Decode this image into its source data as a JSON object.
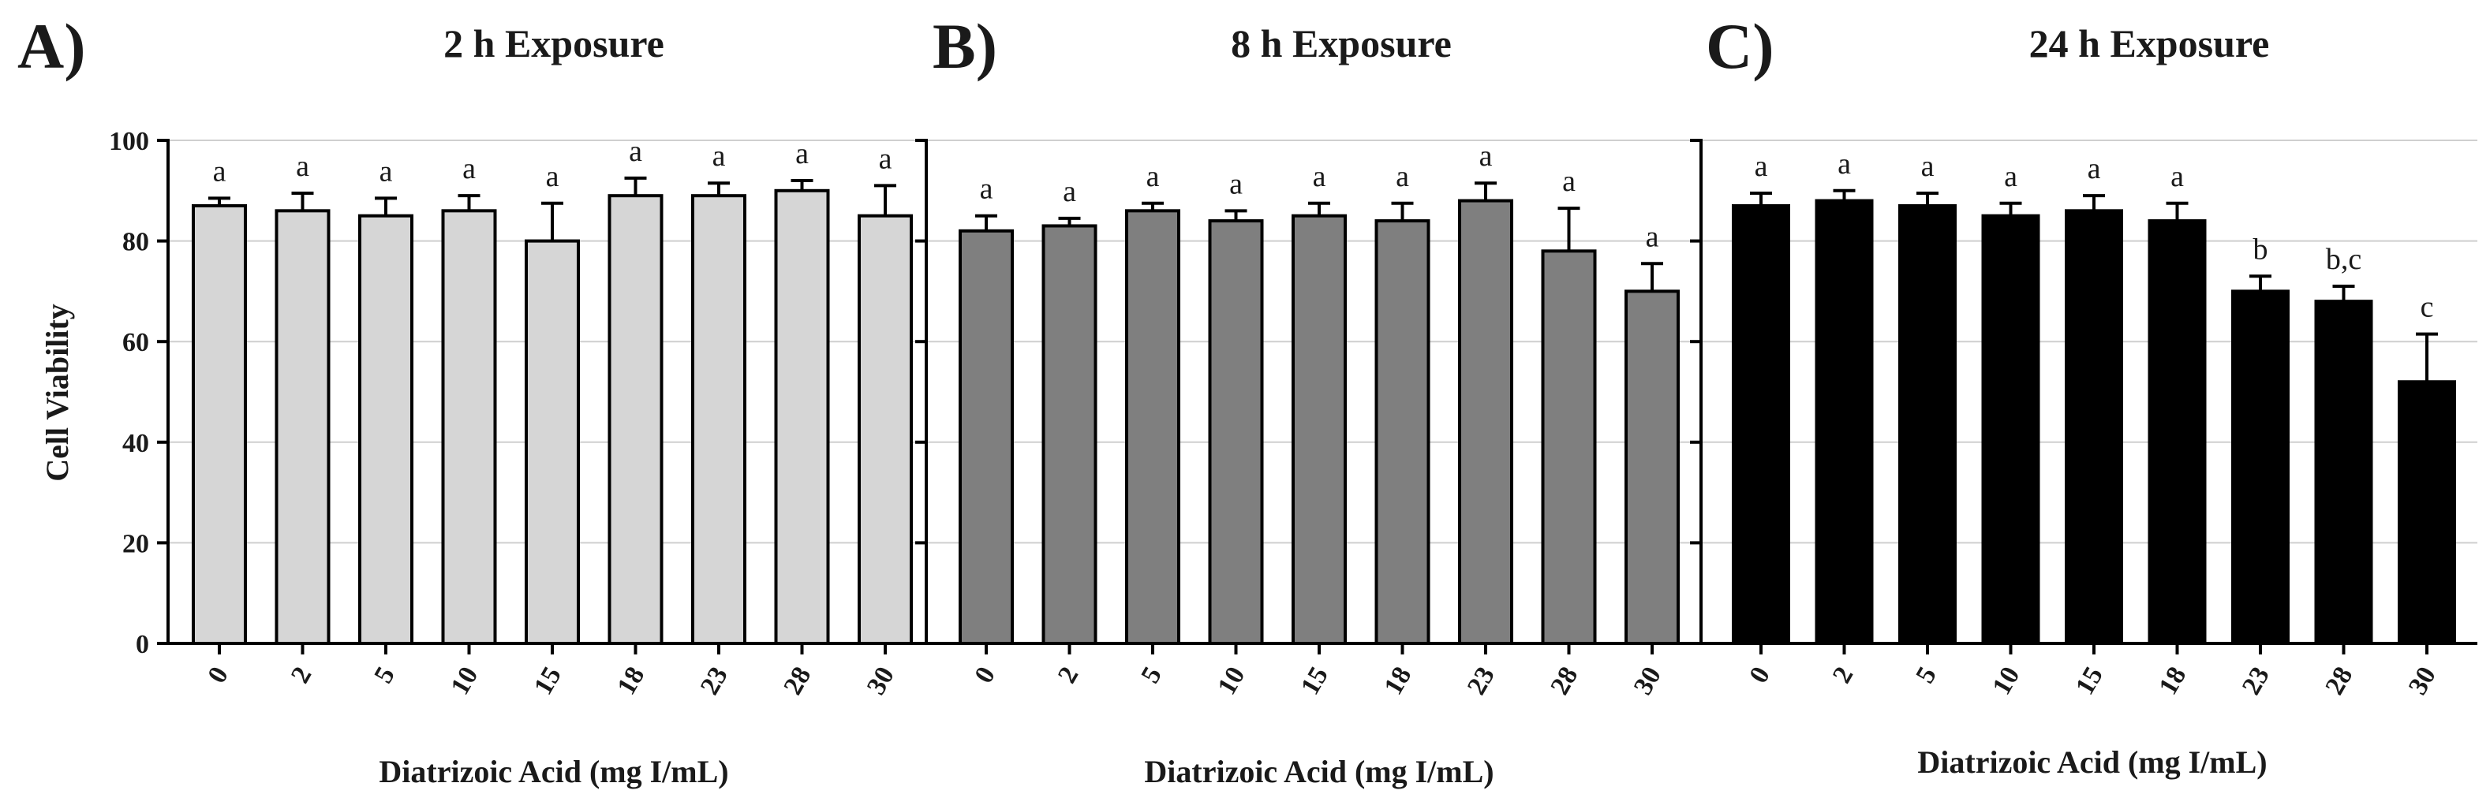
{
  "chart_data": [
    {
      "type": "bar",
      "panel_label": "A)",
      "title": "2 h Exposure",
      "xlabel": "Diatrizoic Acid (mg I/mL)",
      "ylabel": "Cell Viability",
      "ylim": [
        0,
        100
      ],
      "yticks": [
        "0",
        "20",
        "40",
        "60",
        "80",
        "100"
      ],
      "categories": [
        "0",
        "2",
        "5",
        "10",
        "15",
        "18",
        "23",
        "28",
        "30"
      ],
      "values": [
        87,
        86,
        85,
        86,
        80,
        89,
        89,
        90,
        85
      ],
      "errors": [
        1.5,
        3.5,
        3.5,
        3,
        7.5,
        3.5,
        2.5,
        2,
        6
      ],
      "labels": [
        "a",
        "a",
        "a",
        "a",
        "a",
        "a",
        "a",
        "a",
        "a"
      ],
      "bar_color": "#d6d6d6",
      "grid": true
    },
    {
      "type": "bar",
      "panel_label": "B)",
      "title": "8 h Exposure",
      "xlabel": "Diatrizoic Acid (mg I/mL)",
      "ylim": [
        0,
        100
      ],
      "categories": [
        "0",
        "2",
        "5",
        "10",
        "15",
        "18",
        "23",
        "28",
        "30"
      ],
      "values": [
        82,
        83,
        86,
        84,
        85,
        84,
        88,
        78,
        70
      ],
      "errors": [
        3,
        1.5,
        1.5,
        2,
        2.5,
        3.5,
        3.5,
        8.5,
        5.5
      ],
      "labels": [
        "a",
        "a",
        "a",
        "a",
        "a",
        "a",
        "a",
        "a",
        "a"
      ],
      "bar_color": "#7f7f7f",
      "grid": true
    },
    {
      "type": "bar",
      "panel_label": "C)",
      "title": "24 h Exposure",
      "xlabel": "Diatrizoic Acid (mg I/mL)",
      "ylim": [
        0,
        100
      ],
      "categories": [
        "0",
        "2",
        "5",
        "10",
        "15",
        "18",
        "23",
        "28",
        "30"
      ],
      "values": [
        87,
        88,
        87,
        85,
        86,
        84,
        70,
        68,
        52
      ],
      "errors": [
        2.5,
        2,
        2.5,
        2.5,
        3,
        3.5,
        3,
        3,
        9.5
      ],
      "labels": [
        "a",
        "a",
        "a",
        "a",
        "a",
        "a",
        "b",
        "b,c",
        "c"
      ],
      "bar_color": "#000000",
      "grid": true
    }
  ]
}
